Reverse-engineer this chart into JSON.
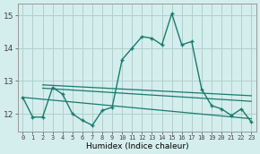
{
  "x": [
    0,
    1,
    2,
    3,
    4,
    5,
    6,
    7,
    8,
    9,
    10,
    11,
    12,
    13,
    14,
    15,
    16,
    17,
    18,
    19,
    20,
    21,
    22,
    23
  ],
  "main_line": [
    12.5,
    11.9,
    11.9,
    12.8,
    12.6,
    12.0,
    11.8,
    11.65,
    12.1,
    12.2,
    13.65,
    14.0,
    14.35,
    14.3,
    14.1,
    15.05,
    14.1,
    14.2,
    12.75,
    12.25,
    12.15,
    11.95,
    12.15,
    11.75
  ],
  "line_color": "#1a7a6e",
  "bg_color": "#d4eeed",
  "grid_color": "#b0cfcf",
  "xlabel": "Humidex (Indice chaleur)",
  "ylabel_ticks": [
    12,
    13,
    14,
    15
  ],
  "xlim": [
    -0.5,
    23.5
  ],
  "ylim": [
    11.45,
    15.35
  ],
  "reg_lines": [
    {
      "x0": 2,
      "y0": 12.88,
      "x1": 23,
      "y1": 12.55
    },
    {
      "x0": 2,
      "y0": 12.78,
      "x1": 23,
      "y1": 12.38
    },
    {
      "x0": 0,
      "y0": 12.5,
      "x1": 23,
      "y1": 11.85
    }
  ]
}
